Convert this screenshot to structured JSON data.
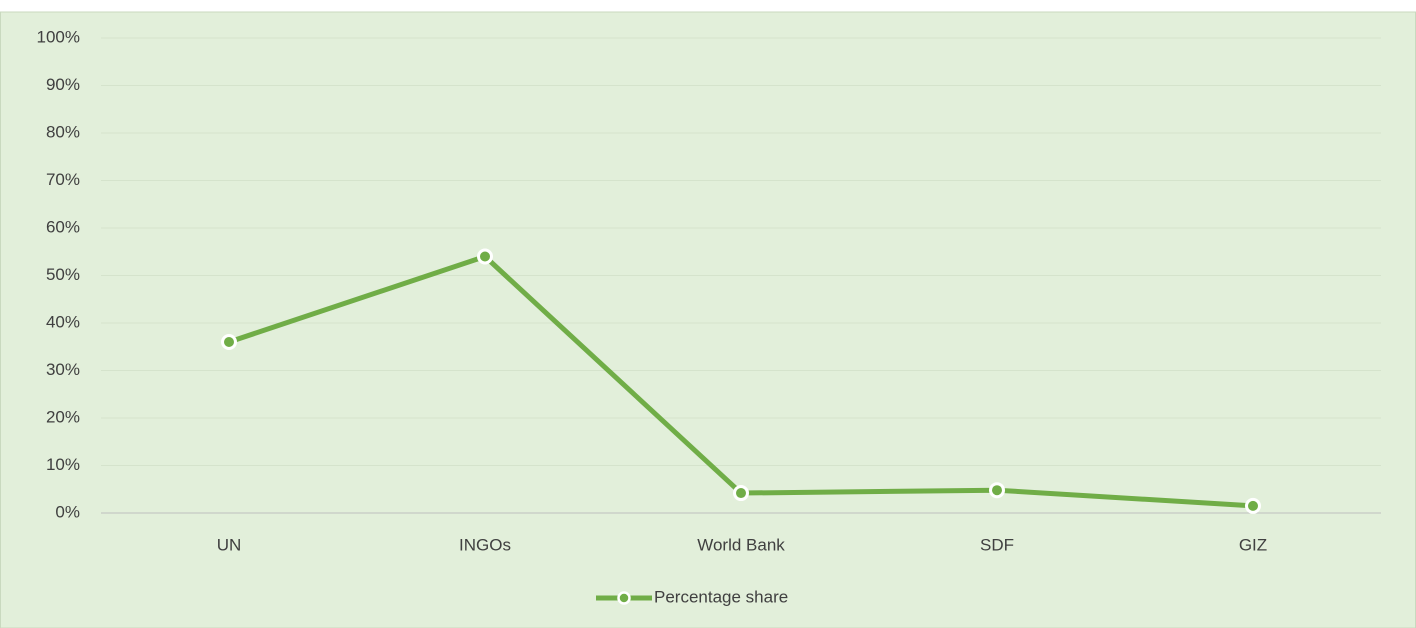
{
  "chart_data": {
    "type": "line",
    "categories": [
      "UN",
      "INGOs",
      "World Bank",
      "SDF",
      "GIZ"
    ],
    "series": [
      {
        "name": "Percentage share",
        "color": "#70ad47",
        "values": [
          36,
          54,
          4.2,
          4.8,
          1.5
        ]
      }
    ],
    "ylim": [
      0,
      100
    ],
    "yticks": [
      {
        "value": 0,
        "label": "0%"
      },
      {
        "value": 10,
        "label": "10%"
      },
      {
        "value": 20,
        "label": "20%"
      },
      {
        "value": 30,
        "label": "30%"
      },
      {
        "value": 40,
        "label": "40%"
      },
      {
        "value": 50,
        "label": "50%"
      },
      {
        "value": 60,
        "label": "60%"
      },
      {
        "value": 70,
        "label": "70%"
      },
      {
        "value": 80,
        "label": "80%"
      },
      {
        "value": 90,
        "label": "90%"
      },
      {
        "value": 100,
        "label": "100%"
      }
    ],
    "grid": true,
    "legend": "bottom"
  }
}
